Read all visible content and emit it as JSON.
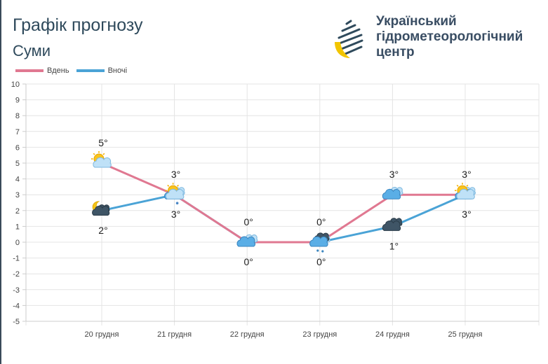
{
  "header": {
    "title": "Графік прогнозу",
    "city": "Суми"
  },
  "org": {
    "lines": [
      "Український",
      "гідрометеорологічний",
      "центр"
    ]
  },
  "colors": {
    "day": "#e07891",
    "night": "#4aa3d6",
    "grid": "#e4e4e4",
    "text": "#2f4a5c"
  },
  "chart_data": {
    "type": "line",
    "ylim": [
      -5,
      10
    ],
    "yticks": [
      10,
      9,
      8,
      7,
      6,
      5,
      4,
      3,
      2,
      1,
      0,
      -1,
      -2,
      -3,
      -4,
      -5
    ],
    "categories": [
      "20 грудня",
      "21 грудня",
      "22 грудня",
      "23 грудня",
      "24 грудня",
      "25 грудня"
    ],
    "legend_position": "top-left",
    "series": [
      {
        "name": "Вдень",
        "color": "#e07891",
        "values": [
          5,
          3,
          0,
          0,
          3,
          3
        ],
        "labels": [
          "5°",
          "3°",
          "0°",
          "0°",
          "3°",
          "3°"
        ],
        "icons": [
          "sun-cloud",
          "sun-cloud-rain",
          "cloud",
          "dark-cloud-snow",
          "cloud",
          "sun-cloud"
        ]
      },
      {
        "name": "Вночі",
        "color": "#4aa3d6",
        "values": [
          2,
          3,
          0,
          0,
          1,
          3
        ],
        "labels": [
          "2°",
          "3°",
          "0°",
          "0°",
          "1°",
          "3°"
        ],
        "icons": [
          "moon-dark-cloud",
          "cloud",
          "cloud",
          "cloud",
          "dark-cloud",
          "cloud"
        ]
      }
    ]
  }
}
